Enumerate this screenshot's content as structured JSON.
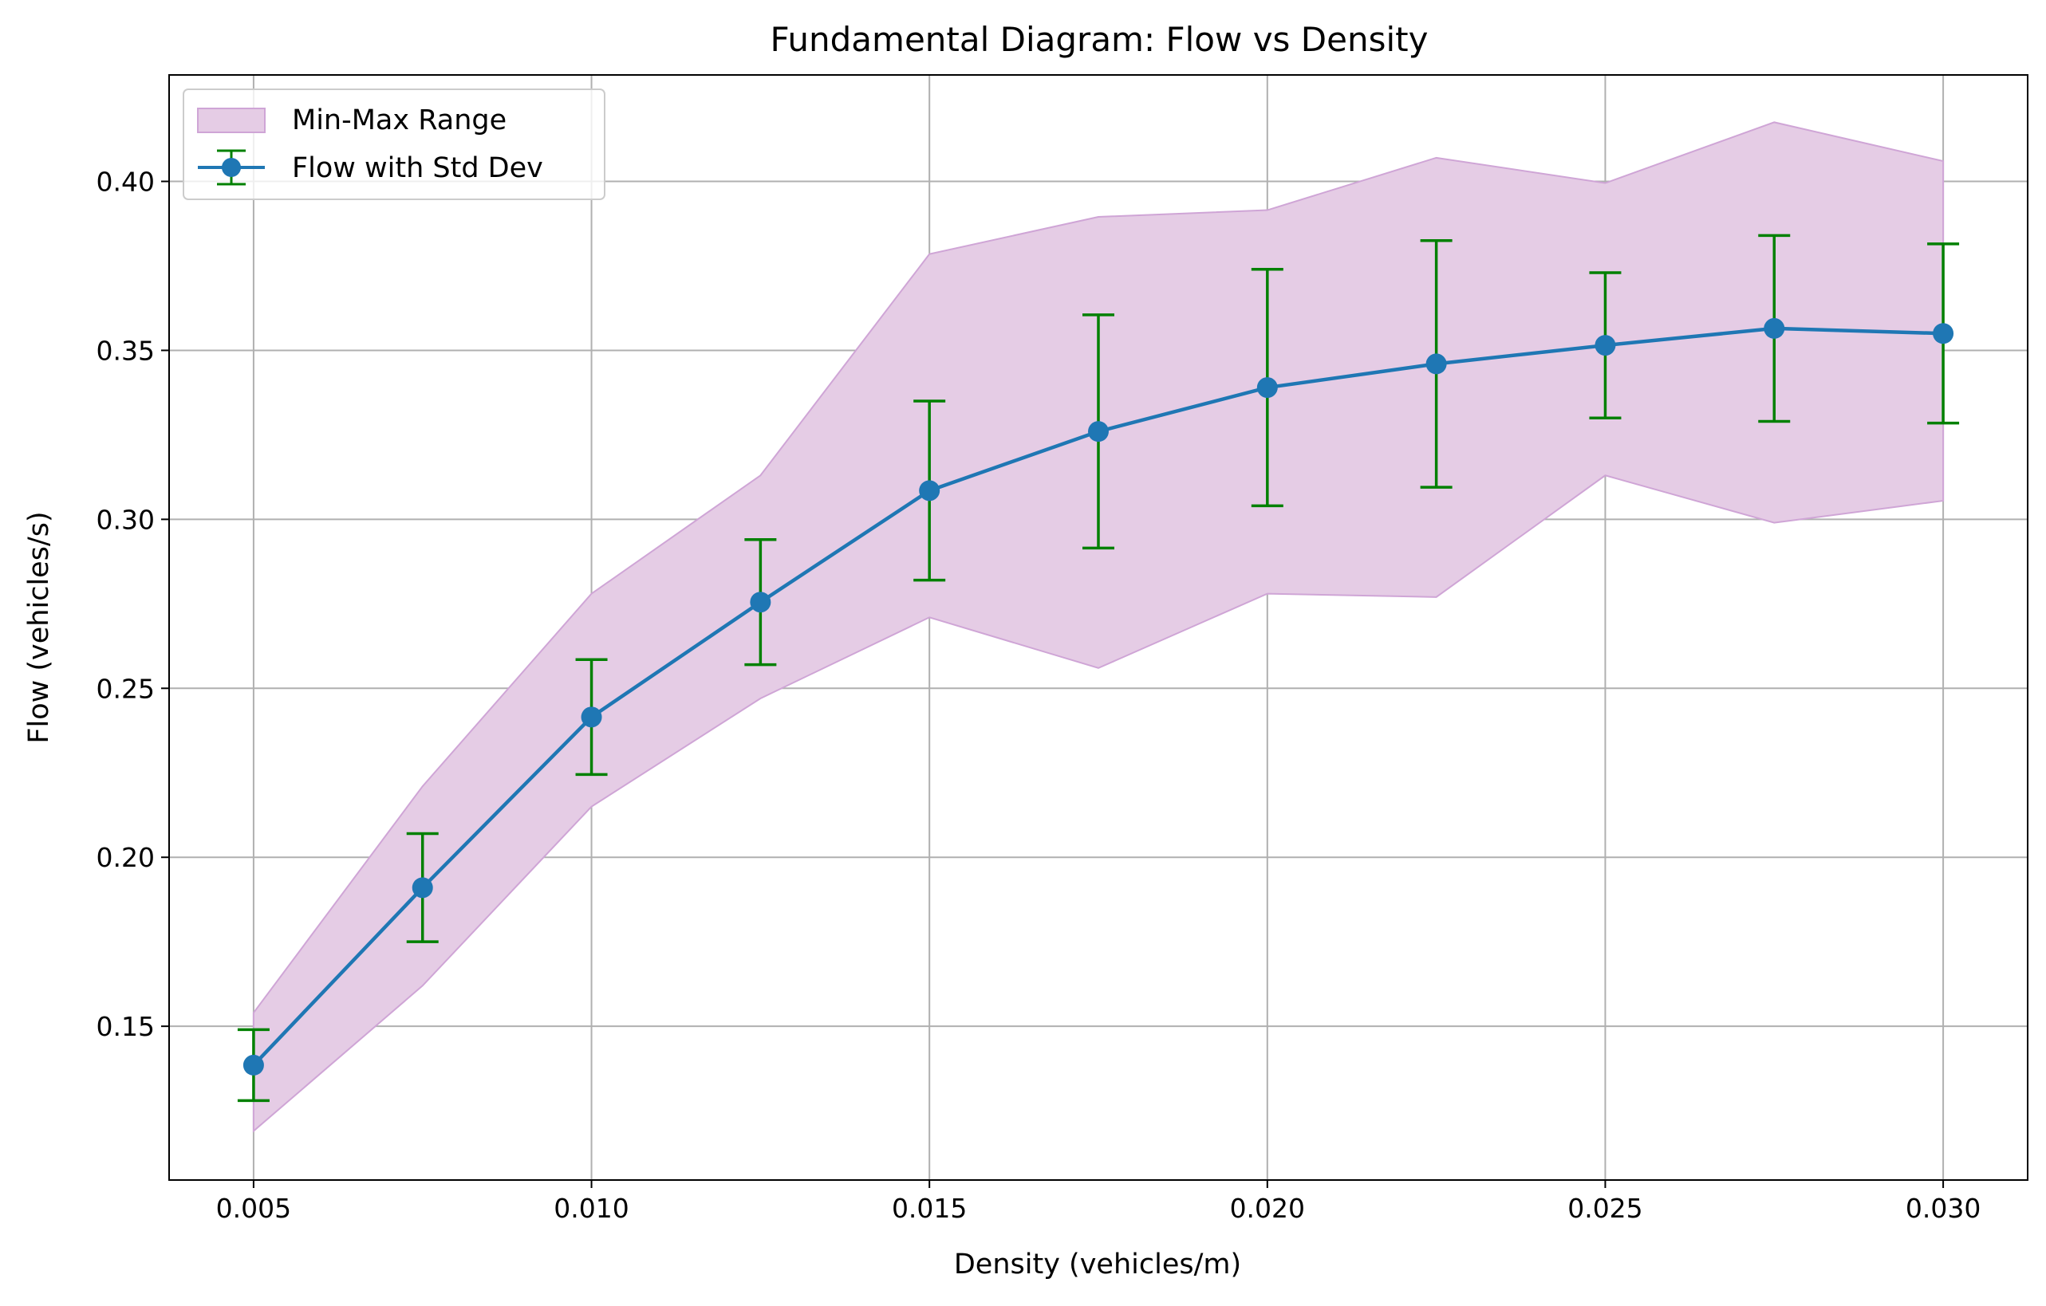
{
  "chart_data": {
    "type": "line",
    "title": "Fundamental Diagram: Flow vs Density",
    "xlabel": "Density (vehicles/m)",
    "ylabel": "Flow (vehicles/s)",
    "xlim": [
      0.00375,
      0.03125
    ],
    "ylim": [
      0.1045,
      0.4315
    ],
    "xticks": [
      0.005,
      0.01,
      0.015,
      0.02,
      0.025,
      0.03
    ],
    "xtick_labels": [
      "0.005",
      "0.010",
      "0.015",
      "0.020",
      "0.025",
      "0.030"
    ],
    "yticks": [
      0.15,
      0.2,
      0.25,
      0.3,
      0.35,
      0.4
    ],
    "ytick_labels": [
      "0.15",
      "0.20",
      "0.25",
      "0.30",
      "0.35",
      "0.40"
    ],
    "grid": true,
    "legend_position": "upper-left",
    "x": [
      0.005,
      0.0075,
      0.01,
      0.0125,
      0.015,
      0.0175,
      0.02,
      0.0225,
      0.025,
      0.0275,
      0.03
    ],
    "series": [
      {
        "name": "Flow with Std Dev",
        "kind": "line-errorbar",
        "color": "#1f77b4",
        "errorbar_color": "#008000",
        "values": [
          0.1385,
          0.191,
          0.2415,
          0.2755,
          0.3085,
          0.326,
          0.339,
          0.346,
          0.3515,
          0.3565,
          0.355
        ],
        "std": [
          0.0105,
          0.016,
          0.017,
          0.0185,
          0.0265,
          0.0345,
          0.035,
          0.0365,
          0.0215,
          0.0275,
          0.0265
        ]
      },
      {
        "name": "Min-Max Range",
        "kind": "band",
        "color": "#e5cce5",
        "edge_color": "#cfa5d6",
        "min": [
          0.119,
          0.162,
          0.215,
          0.247,
          0.271,
          0.256,
          0.278,
          0.277,
          0.313,
          0.299,
          0.3055
        ],
        "max": [
          0.154,
          0.221,
          0.278,
          0.313,
          0.3785,
          0.3895,
          0.3915,
          0.407,
          0.3995,
          0.4175,
          0.406
        ]
      }
    ]
  }
}
